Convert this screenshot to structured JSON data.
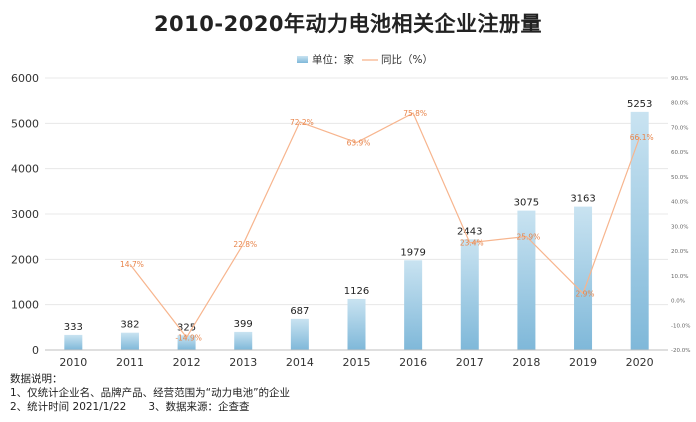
{
  "chart_data": {
    "type": "bar",
    "title": "2010-2020年动力电池相关企业注册量",
    "legend": {
      "bar_label": "单位：家",
      "line_label": "同比（%）",
      "placement": "top-center"
    },
    "categories": [
      "2010",
      "2011",
      "2012",
      "2013",
      "2014",
      "2015",
      "2016",
      "2017",
      "2018",
      "2019",
      "2020"
    ],
    "series": [
      {
        "name": "单位：家",
        "type": "bar",
        "axis": "left",
        "values": [
          333,
          382,
          325,
          399,
          687,
          1126,
          1979,
          2443,
          3075,
          3163,
          5253
        ],
        "labels": [
          "333",
          "382",
          "325",
          "399",
          "687",
          "1126",
          "1979",
          "2443",
          "3075",
          "3163",
          "5253"
        ],
        "color": "#8fc4e0"
      },
      {
        "name": "同比（%）",
        "type": "line",
        "axis": "right",
        "values": [
          null,
          14.7,
          -14.9,
          22.8,
          72.2,
          63.9,
          75.8,
          23.4,
          25.9,
          2.9,
          66.1
        ],
        "labels": [
          "",
          "14.7%",
          "-14.9%",
          "22.8%",
          "72.2%",
          "63.9%",
          "75.8%",
          "23.4%",
          "25.9%",
          "2.9%",
          "66.1%"
        ],
        "color": "#f7b58e"
      }
    ],
    "y_left": {
      "range": [
        0,
        6000
      ],
      "ticks": [
        0,
        1000,
        2000,
        3000,
        4000,
        5000,
        6000
      ],
      "tick_labels": [
        "0",
        "1000",
        "2000",
        "3000",
        "4000",
        "5000",
        "6000"
      ]
    },
    "y_right": {
      "range": [
        -20,
        90
      ],
      "ticks": [
        -20,
        -10,
        0,
        10,
        20,
        30,
        40,
        50,
        60,
        70,
        80,
        90
      ],
      "tick_labels": [
        "-20.0%",
        "-10.0%",
        "0.0%",
        "10.0%",
        "20.0%",
        "30.0%",
        "40.0%",
        "50.0%",
        "60.0%",
        "70.0%",
        "80.0%",
        "90.0%"
      ]
    },
    "grid": true
  },
  "notes": {
    "heading": "数据说明：",
    "line1": "1、仅统计企业名、品牌产品、经营范围为“动力电池”的企业",
    "line2_part1": "2、统计时间 2021/1/22",
    "line2_part2": "3、数据来源：企查查"
  },
  "colors": {
    "bar_top": "#c9e3f1",
    "bar_bottom": "#7fb8d9",
    "line": "#f7b58e",
    "line_label": "#e8844a",
    "grid": "#e3e3e3"
  }
}
